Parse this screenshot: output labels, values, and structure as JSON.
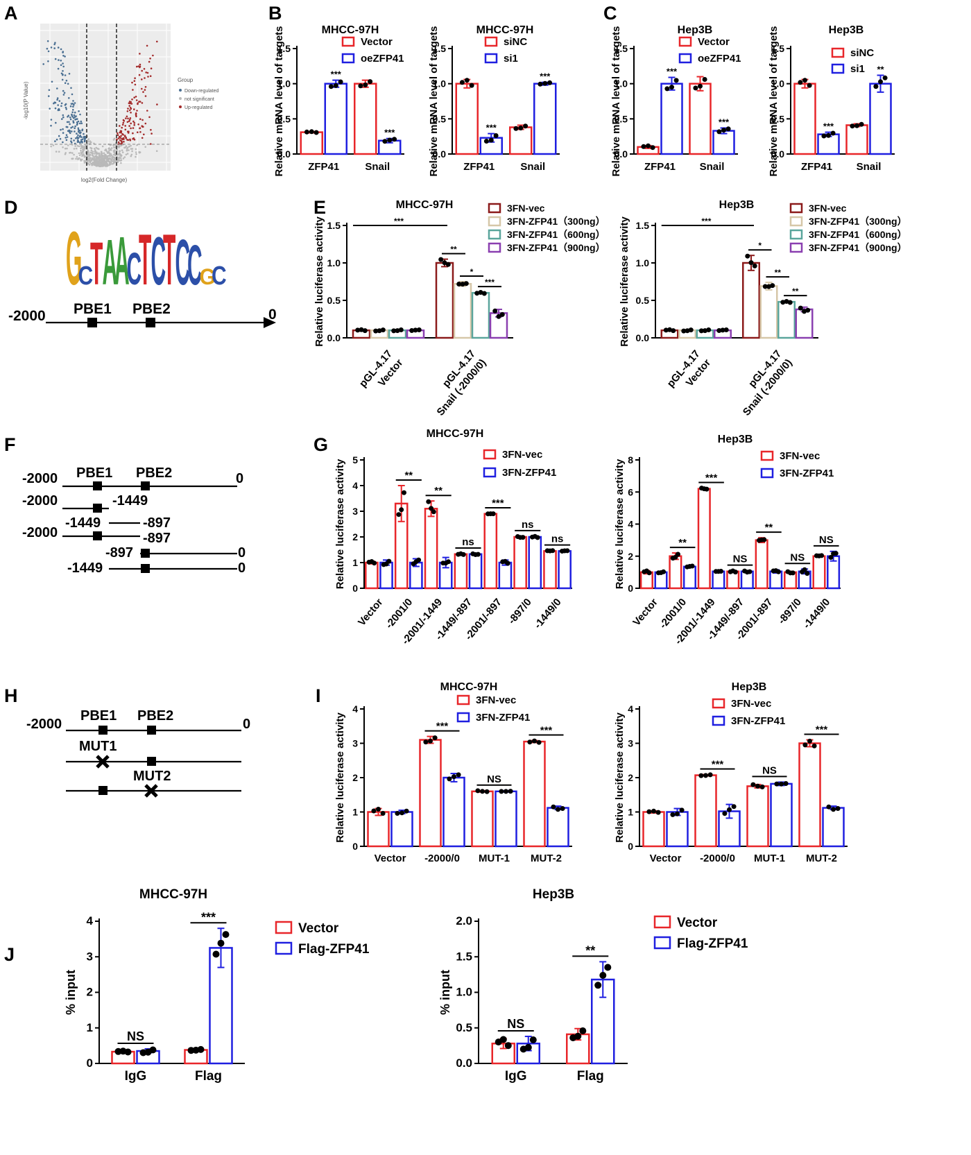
{
  "panels": {
    "A": "A",
    "B": "B",
    "C": "C",
    "D": "D",
    "E": "E",
    "F": "F",
    "G": "G",
    "H": "H",
    "I": "I",
    "J": "J"
  },
  "colors": {
    "red": "#e8262a",
    "blue": "#1f1fe0",
    "darkred": "#8b1a1a",
    "tan": "#d6c7a8",
    "teal": "#5aa59c",
    "purple": "#8a3fb0"
  },
  "volcano": {
    "ylabel": "-log10(P Value)",
    "xlabel": "log2(Fold Change)",
    "legend_title": "Group",
    "legend": [
      "Down-regulated",
      "not significant",
      "Up-regulated"
    ]
  },
  "motif": {
    "sequence": "GCTAACTCTCCGC"
  },
  "schematics": {
    "D": {
      "start": "-2000",
      "end": "0",
      "sites": [
        "PBE1",
        "PBE2"
      ]
    },
    "F": {
      "start": "-2000",
      "end": "0",
      "sites": [
        "PBE1",
        "PBE2"
      ],
      "labels": [
        "-2000",
        "-1449",
        "-2000",
        "-1449",
        "-897",
        "-2000",
        "-897",
        "-897",
        "0",
        "-1449",
        "0"
      ]
    },
    "H": {
      "start": "-2000",
      "end": "0",
      "sites": [
        "PBE1",
        "PBE2"
      ],
      "mutants": [
        "MUT1",
        "MUT2"
      ]
    }
  },
  "chart_data": [
    {
      "id": "B1",
      "type": "bar",
      "title": "MHCC-97H",
      "ylabel": "Relative mRNA level of targets",
      "categories": [
        "ZFP41",
        "Snail"
      ],
      "ylim": [
        0,
        1.5
      ],
      "yticks": [
        "0.0",
        "0.5",
        "1.0",
        "1.5"
      ],
      "series": [
        {
          "name": "Vector",
          "color": "red",
          "values": [
            0.31,
            1.0
          ],
          "err": [
            0.01,
            0.05
          ]
        },
        {
          "name": "oeZFP41",
          "color": "blue",
          "values": [
            1.0,
            0.19
          ],
          "err": [
            0.05,
            0.03
          ]
        }
      ],
      "significance": [
        "***",
        "***"
      ]
    },
    {
      "id": "B2",
      "type": "bar",
      "title": "MHCC-97H",
      "ylabel": "Relative mRNA level of targets",
      "categories": [
        "ZFP41",
        "Snail"
      ],
      "ylim": [
        0,
        1.5
      ],
      "yticks": [
        "0.0",
        "0.5",
        "1.0",
        "1.5"
      ],
      "series": [
        {
          "name": "siNC",
          "color": "red",
          "values": [
            1.0,
            0.38
          ],
          "err": [
            0.06,
            0.03
          ]
        },
        {
          "name": "si1",
          "color": "blue",
          "values": [
            0.23,
            1.0
          ],
          "err": [
            0.06,
            0.02
          ]
        }
      ],
      "significance": [
        "***",
        "***"
      ]
    },
    {
      "id": "C1",
      "type": "bar",
      "title": "Hep3B",
      "ylabel": "Relative mRNA level of targets",
      "categories": [
        "ZFP41",
        "Snail"
      ],
      "ylim": [
        0,
        1.5
      ],
      "yticks": [
        "0.0",
        "0.5",
        "1.0",
        "1.5"
      ],
      "series": [
        {
          "name": "Vector",
          "color": "red",
          "values": [
            0.1,
            1.0
          ],
          "err": [
            0.02,
            0.1
          ]
        },
        {
          "name": "oeZFP41",
          "color": "blue",
          "values": [
            1.0,
            0.33
          ],
          "err": [
            0.09,
            0.04
          ]
        }
      ],
      "significance": [
        "***",
        "***"
      ]
    },
    {
      "id": "C2",
      "type": "bar",
      "title": "Hep3B",
      "ylabel": "Relative mRNA level of targets",
      "categories": [
        "ZFP41",
        "Snail"
      ],
      "ylim": [
        0,
        1.5
      ],
      "yticks": [
        "0.0",
        "0.5",
        "1.0",
        "1.5"
      ],
      "series": [
        {
          "name": "siNC",
          "color": "red",
          "values": [
            1.0,
            0.41
          ],
          "err": [
            0.06,
            0.02
          ]
        },
        {
          "name": "si1",
          "color": "blue",
          "values": [
            0.28,
            1.0
          ],
          "err": [
            0.03,
            0.12
          ]
        }
      ],
      "significance": [
        "***",
        "**"
      ]
    },
    {
      "id": "E1",
      "type": "bar",
      "title": "MHCC-97H",
      "ylabel": "Relative luciferase activity",
      "categories": [
        "pGL-4.17\nVector",
        "pGL-4.17\nSnail (-2000/0)"
      ],
      "ylim": [
        0,
        1.5
      ],
      "yticks": [
        "0.0",
        "0.5",
        "1.0",
        "1.5"
      ],
      "series": [
        {
          "name": "3FN-vec",
          "color": "darkred",
          "values": [
            0.1,
            1.0
          ],
          "err": [
            0.01,
            0.05
          ]
        },
        {
          "name": "3FN-ZFP41（300ng）",
          "color": "tan",
          "values": [
            0.1,
            0.72
          ],
          "err": [
            0.01,
            0.03
          ]
        },
        {
          "name": "3FN-ZFP41（600ng）",
          "color": "teal",
          "values": [
            0.1,
            0.6
          ],
          "err": [
            0.01,
            0.01
          ]
        },
        {
          "name": "3FN-ZFP41（900ng）",
          "color": "purple",
          "values": [
            0.1,
            0.33
          ],
          "err": [
            0.01,
            0.05
          ]
        }
      ],
      "significance": [
        "***",
        "**",
        "*",
        "***"
      ]
    },
    {
      "id": "E2",
      "type": "bar",
      "title": "Hep3B",
      "ylabel": "Relative luciferase activity",
      "categories": [
        "pGL-4.17\nVector",
        "pGL-4.17\nSnail (-2000/0)"
      ],
      "ylim": [
        0,
        1.5
      ],
      "yticks": [
        "0.0",
        "0.5",
        "1.0",
        "1.5"
      ],
      "series": [
        {
          "name": "3FN-vec",
          "color": "darkred",
          "values": [
            0.1,
            1.0
          ],
          "err": [
            0.01,
            0.1
          ]
        },
        {
          "name": "3FN-ZFP41（300ng）",
          "color": "tan",
          "values": [
            0.1,
            0.69
          ],
          "err": [
            0.01,
            0.05
          ]
        },
        {
          "name": "3FN-ZFP41（600ng）",
          "color": "teal",
          "values": [
            0.1,
            0.48
          ],
          "err": [
            0.01,
            0.01
          ]
        },
        {
          "name": "3FN-ZFP41（900ng）",
          "color": "purple",
          "values": [
            0.1,
            0.38
          ],
          "err": [
            0.01,
            0.03
          ]
        }
      ],
      "significance": [
        "***",
        "*",
        "**",
        "**"
      ]
    },
    {
      "id": "G1",
      "type": "bar",
      "title": "MHCC-97H",
      "ylabel": "Relative luciferase activity",
      "categories": [
        "Vector",
        "-2001/0",
        "-2001/-1449",
        "-1449/-897",
        "-2001/-897",
        "-897/0",
        "-1449/0"
      ],
      "ylim": [
        0,
        5
      ],
      "yticks": [
        "0",
        "1",
        "2",
        "3",
        "4",
        "5"
      ],
      "series": [
        {
          "name": "3FN-vec",
          "color": "red",
          "values": [
            1.0,
            3.3,
            3.1,
            1.33,
            2.9,
            2.0,
            1.45
          ],
          "err": [
            0.05,
            0.7,
            0.3,
            0.02,
            0.02,
            0.02,
            0.02
          ]
        },
        {
          "name": "3FN-ZFP41",
          "color": "blue",
          "values": [
            1.0,
            1.0,
            1.0,
            1.33,
            1.0,
            2.0,
            1.45
          ],
          "err": [
            0.1,
            0.15,
            0.2,
            0.02,
            0.1,
            0.03,
            0.02
          ]
        }
      ],
      "significance": [
        "",
        "**",
        "**",
        "ns",
        "***",
        "ns",
        "ns"
      ]
    },
    {
      "id": "G2",
      "type": "bar",
      "title": "Hep3B",
      "ylabel": "Relative luciferase activity",
      "categories": [
        "Vector",
        "-2001/0",
        "-2001/-1449",
        "-1449/-897",
        "-2001/-897",
        "-897/0",
        "-1449/0"
      ],
      "ylim": [
        0,
        8
      ],
      "yticks": [
        "0",
        "2",
        "4",
        "6",
        "8"
      ],
      "series": [
        {
          "name": "3FN-vec",
          "color": "red",
          "values": [
            1.0,
            2.0,
            6.2,
            1.05,
            3.0,
            1.0,
            2.0
          ],
          "err": [
            0.1,
            0.2,
            0.05,
            0.05,
            0.15,
            0.05,
            0.05
          ]
        },
        {
          "name": "3FN-ZFP41",
          "color": "blue",
          "values": [
            1.0,
            1.35,
            1.05,
            1.05,
            1.05,
            1.05,
            2.0
          ],
          "err": [
            0.05,
            0.05,
            0.05,
            0.05,
            0.1,
            0.15,
            0.3
          ]
        }
      ],
      "significance": [
        "",
        "**",
        "***",
        "NS",
        "**",
        "NS",
        "NS"
      ]
    },
    {
      "id": "I1",
      "type": "bar",
      "title": "MHCC-97H",
      "ylabel": "Relative luciferase activity",
      "categories": [
        "Vector",
        "-2000/0",
        "MUT-1",
        "MUT-2"
      ],
      "ylim": [
        0,
        4
      ],
      "yticks": [
        "0",
        "1",
        "2",
        "3",
        "4"
      ],
      "series": [
        {
          "name": "3FN-vec",
          "color": "red",
          "values": [
            1.0,
            3.1,
            1.6,
            3.05
          ],
          "err": [
            0.1,
            0.1,
            0.02,
            0.03
          ]
        },
        {
          "name": "3FN-ZFP41",
          "color": "blue",
          "values": [
            1.0,
            2.0,
            1.6,
            1.12
          ],
          "err": [
            0.05,
            0.12,
            0.02,
            0.05
          ]
        }
      ],
      "significance": [
        "",
        "***",
        "NS",
        "***"
      ]
    },
    {
      "id": "I2",
      "type": "bar",
      "title": "Hep3B",
      "ylabel": "Relative luciferase activity",
      "categories": [
        "Vector",
        "-2000/0",
        "MUT-1",
        "MUT-2"
      ],
      "ylim": [
        0,
        4
      ],
      "yticks": [
        "0",
        "1",
        "2",
        "3",
        "4"
      ],
      "series": [
        {
          "name": "3FN-vec",
          "color": "red",
          "values": [
            1.0,
            2.07,
            1.75,
            3.0
          ],
          "err": [
            0.03,
            0.02,
            0.05,
            0.1
          ]
        },
        {
          "name": "3FN-ZFP41",
          "color": "blue",
          "values": [
            1.0,
            1.02,
            1.82,
            1.12
          ],
          "err": [
            0.1,
            0.2,
            0.05,
            0.05
          ]
        }
      ],
      "significance": [
        "",
        "***",
        "NS",
        "***"
      ]
    },
    {
      "id": "J1",
      "type": "bar",
      "title": "MHCC-97H",
      "ylabel": "% input",
      "categories": [
        "IgG",
        "Flag"
      ],
      "ylim": [
        0,
        4
      ],
      "yticks": [
        "0",
        "1",
        "2",
        "3",
        "4"
      ],
      "series": [
        {
          "name": "Vector",
          "color": "red",
          "values": [
            0.33,
            0.38
          ],
          "err": [
            0.02,
            0.02
          ]
        },
        {
          "name": "Flag-ZFP41",
          "color": "blue",
          "values": [
            0.35,
            3.25
          ],
          "err": [
            0.06,
            0.55
          ]
        }
      ],
      "significance": [
        "NS",
        "***"
      ]
    },
    {
      "id": "J2",
      "type": "bar",
      "title": "Hep3B",
      "ylabel": "% input",
      "categories": [
        "IgG",
        "Flag"
      ],
      "ylim": [
        0,
        2
      ],
      "yticks": [
        "0.0",
        "0.5",
        "1.0",
        "1.5",
        "2.0"
      ],
      "series": [
        {
          "name": "Vector",
          "color": "red",
          "values": [
            0.28,
            0.41
          ],
          "err": [
            0.07,
            0.08
          ]
        },
        {
          "name": "Flag-ZFP41",
          "color": "blue",
          "values": [
            0.28,
            1.18
          ],
          "err": [
            0.1,
            0.25
          ]
        }
      ],
      "significance": [
        "NS",
        "**"
      ]
    }
  ]
}
